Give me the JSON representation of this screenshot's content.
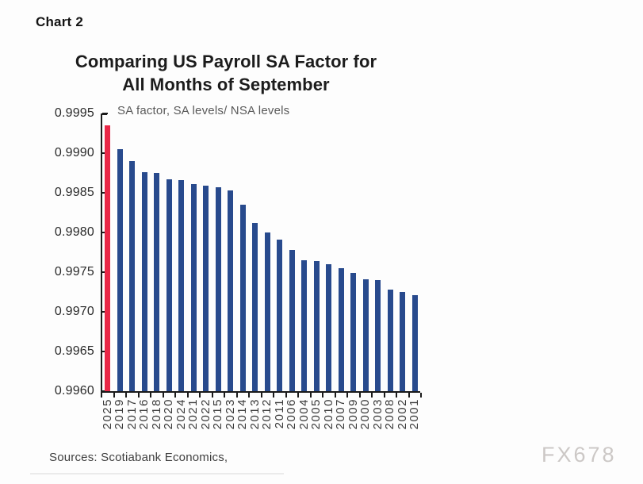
{
  "page": {
    "chart_label": "Chart 2",
    "title_line1": "Comparing US Payroll SA Factor for",
    "title_line2": "All Months of September",
    "subtitle": "SA factor, SA levels/ NSA levels",
    "source_note": "Sources: Scotiabank Economics,",
    "watermark": "FX678"
  },
  "colors": {
    "highlight_bar": "#e92747",
    "bar": "#284a8d",
    "axis": "#1a1a1a",
    "subtitle_text": "#5a5a5a",
    "watermark_text": "#ccc8c6"
  },
  "chart_data": {
    "type": "bar",
    "title": "Comparing US Payroll SA Factor for All Months of September",
    "subtitle": "SA factor, SA levels/ NSA levels",
    "xlabel": "",
    "ylabel": "SA factor, SA levels/ NSA levels",
    "categories": [
      "2025",
      "2019",
      "2017",
      "2016",
      "2018",
      "2020",
      "2024",
      "2021",
      "2022",
      "2015",
      "2023",
      "2014",
      "2013",
      "2012",
      "2011",
      "2006",
      "2004",
      "2005",
      "2010",
      "2007",
      "2009",
      "2000",
      "2003",
      "2008",
      "2002",
      "2001"
    ],
    "values": [
      0.99935,
      0.99905,
      0.9989,
      0.99876,
      0.99875,
      0.99867,
      0.99866,
      0.99861,
      0.99859,
      0.99857,
      0.99853,
      0.99835,
      0.99812,
      0.998,
      0.99791,
      0.99778,
      0.99765,
      0.99764,
      0.9976,
      0.99755,
      0.99749,
      0.99741,
      0.9974,
      0.99728,
      0.99725,
      0.99721
    ],
    "highlight_category": "2025",
    "ylim": [
      0.996,
      0.9995
    ],
    "ytick_step": 0.0005,
    "yticks": [
      "0.9995",
      "0.9990",
      "0.9985",
      "0.9980",
      "0.9975",
      "0.9970",
      "0.9965",
      "0.9960"
    ],
    "grid": false,
    "legend": "none",
    "sort": "descending by value"
  }
}
